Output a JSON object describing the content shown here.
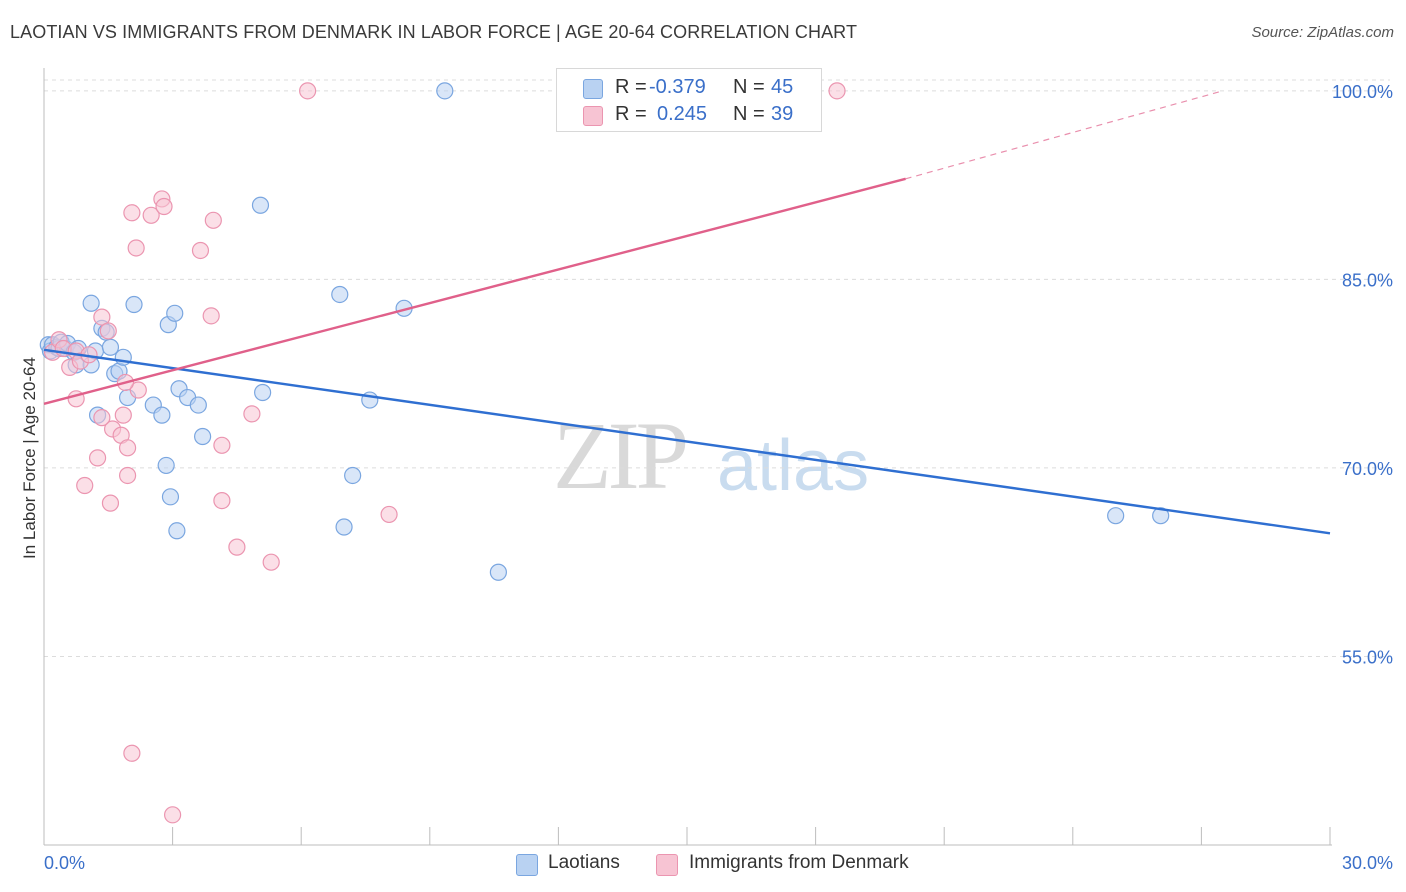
{
  "header": {
    "title": "LAOTIAN VS IMMIGRANTS FROM DENMARK IN LABOR FORCE | AGE 20-64 CORRELATION CHART",
    "source": "Source: ZipAtlas.com"
  },
  "watermark": {
    "zip": "ZIP",
    "atlas": "atlas"
  },
  "legend": {
    "series1": {
      "r_label": "R =",
      "r_value": "-0.379",
      "n_label": "N =",
      "n_value": "45"
    },
    "series2": {
      "r_label": "R =",
      "r_value": "0.245",
      "n_label": "N =",
      "n_value": "39"
    }
  },
  "bottom_legend": {
    "series1": "Laotians",
    "series2": "Immigrants from Denmark"
  },
  "colors": {
    "blue_fill": "#b9d2f2",
    "blue_stroke": "#7aa6e0",
    "blue_line": "#2f6fd1",
    "pink_fill": "#f7c4d3",
    "pink_stroke": "#eb95b0",
    "pink_line": "#e0608a",
    "axis_text": "#3a6fc9",
    "grid": "#dcdcdc"
  },
  "chart_data": {
    "type": "scatter",
    "title": "LAOTIAN VS IMMIGRANTS FROM DENMARK IN LABOR FORCE | AGE 20-64 CORRELATION CHART",
    "xlabel": "",
    "ylabel": "In Labor Force | Age 20-64",
    "xlim": [
      0,
      30
    ],
    "ylim": [
      40,
      101.5
    ],
    "x_tick_labels": [
      "0.0%",
      "30.0%"
    ],
    "y_ticks": [
      55,
      70,
      85,
      100
    ],
    "y_tick_labels": [
      "55.0%",
      "70.0%",
      "85.0%",
      "100.0%"
    ],
    "series": [
      {
        "name": "Laotians",
        "color": "blue",
        "r": -0.379,
        "n": 45,
        "trend": {
          "x0": 0,
          "y0": 79.4,
          "x1": 30,
          "y1": 64.8,
          "dashed_to": null
        },
        "points": [
          [
            0.1,
            79.8
          ],
          [
            0.15,
            79.3
          ],
          [
            0.2,
            79.8
          ],
          [
            0.3,
            79.6
          ],
          [
            0.35,
            79.5
          ],
          [
            0.4,
            80.0
          ],
          [
            0.5,
            79.5
          ],
          [
            0.55,
            79.9
          ],
          [
            0.7,
            79.2
          ],
          [
            0.75,
            78.2
          ],
          [
            0.8,
            79.5
          ],
          [
            1.1,
            78.2
          ],
          [
            1.2,
            79.3
          ],
          [
            1.1,
            83.1
          ],
          [
            1.35,
            81.1
          ],
          [
            1.45,
            80.8
          ],
          [
            1.55,
            79.6
          ],
          [
            1.65,
            77.5
          ],
          [
            1.75,
            77.7
          ],
          [
            1.85,
            78.8
          ],
          [
            2.1,
            83.0
          ],
          [
            2.55,
            75.0
          ],
          [
            2.75,
            74.2
          ],
          [
            2.85,
            70.2
          ],
          [
            2.9,
            81.4
          ],
          [
            3.05,
            82.3
          ],
          [
            3.15,
            76.3
          ],
          [
            3.35,
            75.6
          ],
          [
            3.6,
            75.0
          ],
          [
            3.7,
            72.5
          ],
          [
            5.1,
            76.0
          ],
          [
            5.05,
            90.9
          ],
          [
            6.9,
            83.8
          ],
          [
            7.6,
            75.4
          ],
          [
            7.2,
            69.4
          ],
          [
            7.0,
            65.3
          ],
          [
            8.4,
            82.7
          ],
          [
            9.35,
            100.0
          ],
          [
            10.6,
            61.7
          ],
          [
            25.0,
            66.2
          ],
          [
            26.05,
            66.2
          ],
          [
            1.25,
            74.2
          ],
          [
            1.95,
            75.6
          ],
          [
            2.95,
            67.7
          ],
          [
            3.1,
            65.0
          ]
        ]
      },
      {
        "name": "Immigrants from Denmark",
        "color": "pink",
        "r": 0.245,
        "n": 39,
        "trend": {
          "x0": 0,
          "y0": 75.1,
          "x1": 20.1,
          "y1": 93.0,
          "dashed_to": [
            27.5,
            100.0
          ]
        },
        "points": [
          [
            0.2,
            79.2
          ],
          [
            0.35,
            80.2
          ],
          [
            0.45,
            79.5
          ],
          [
            0.6,
            78.0
          ],
          [
            0.75,
            79.3
          ],
          [
            0.85,
            78.5
          ],
          [
            1.05,
            79.0
          ],
          [
            1.35,
            82.0
          ],
          [
            1.5,
            80.9
          ],
          [
            1.6,
            73.1
          ],
          [
            1.8,
            72.6
          ],
          [
            1.95,
            69.4
          ],
          [
            1.55,
            67.2
          ],
          [
            1.85,
            74.2
          ],
          [
            1.95,
            71.6
          ],
          [
            2.2,
            76.2
          ],
          [
            2.15,
            87.5
          ],
          [
            2.05,
            90.3
          ],
          [
            2.5,
            90.1
          ],
          [
            2.75,
            91.4
          ],
          [
            2.8,
            90.8
          ],
          [
            3.65,
            87.3
          ],
          [
            3.95,
            89.7
          ],
          [
            3.9,
            82.1
          ],
          [
            4.15,
            71.8
          ],
          [
            4.15,
            67.4
          ],
          [
            4.5,
            63.7
          ],
          [
            4.85,
            74.3
          ],
          [
            5.3,
            62.5
          ],
          [
            6.15,
            100.0
          ],
          [
            8.05,
            66.3
          ],
          [
            18.5,
            100.0
          ],
          [
            2.05,
            47.3
          ],
          [
            3.0,
            42.4
          ],
          [
            0.75,
            75.5
          ],
          [
            0.95,
            68.6
          ],
          [
            1.35,
            74.0
          ],
          [
            1.25,
            70.8
          ],
          [
            1.9,
            76.8
          ]
        ]
      }
    ]
  }
}
